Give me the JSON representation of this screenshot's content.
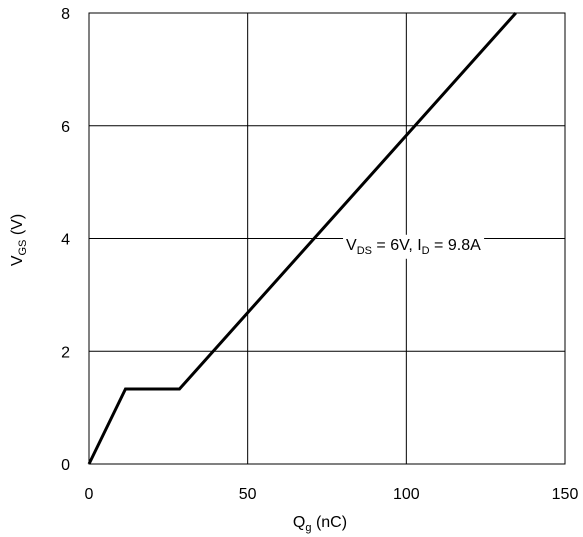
{
  "chart_data": {
    "type": "line",
    "title": "",
    "xlabel": {
      "main": "Q",
      "sub": "g",
      "rest": " (nC)"
    },
    "ylabel": {
      "main": "V",
      "sub": "GS",
      "rest": " (V)"
    },
    "xlim": [
      0,
      150
    ],
    "ylim": [
      0,
      8
    ],
    "xticks": [
      0,
      50,
      100,
      150
    ],
    "yticks": [
      0,
      2,
      4,
      6,
      8
    ],
    "grid": true,
    "series": [
      {
        "x": [
          0,
          11.5,
          28.5,
          134.5
        ],
        "y": [
          0,
          1.33,
          1.33,
          8.0
        ]
      }
    ],
    "annotation": {
      "parts": [
        {
          "t": "V",
          "sub": false
        },
        {
          "t": "DS",
          "sub": true
        },
        {
          "t": " = 6V, I",
          "sub": false
        },
        {
          "t": "D",
          "sub": true
        },
        {
          "t": " = 9.8A",
          "sub": false
        }
      ],
      "x": 81,
      "y": 3.8
    },
    "colors": {
      "line": "#000000",
      "grid": "#000000",
      "background": "#ffffff"
    }
  }
}
